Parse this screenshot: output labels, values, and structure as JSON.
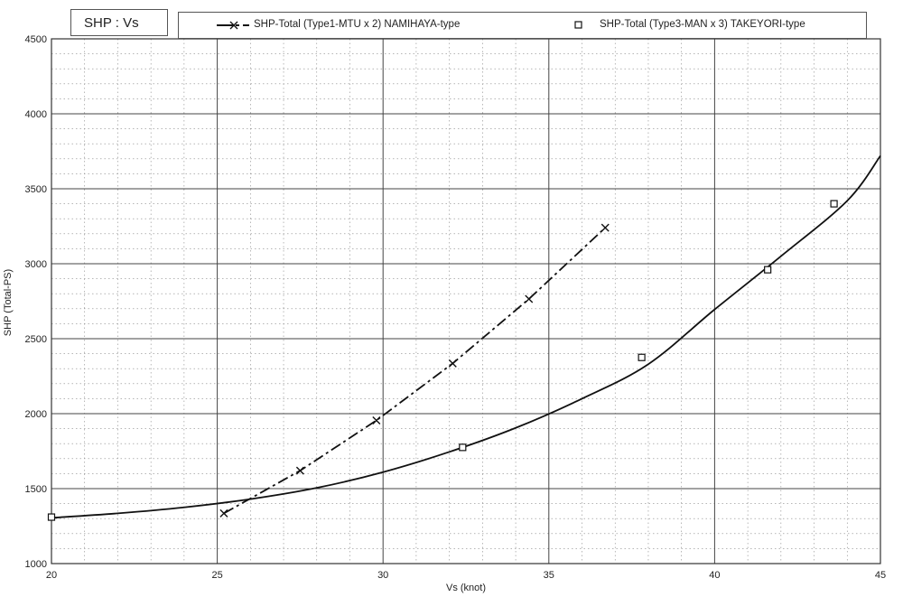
{
  "chart_data": {
    "type": "line",
    "title": "SHP : Vs",
    "xlabel": "Vs (knot)",
    "ylabel": "SHP (Total-PS)",
    "xlim": [
      20,
      45
    ],
    "ylim": [
      1000,
      4500
    ],
    "x_ticks": [
      20,
      25,
      30,
      35,
      40,
      45
    ],
    "y_ticks": [
      1000,
      1500,
      2000,
      2500,
      3000,
      3500,
      4000,
      4500
    ],
    "grid": true,
    "legend_position": "top",
    "series": [
      {
        "name": "SHP-Total (Type1-MTU x 2) NAMIHAYA-type",
        "style": "dash-dot line with x markers",
        "points": [
          [
            25.2,
            1335
          ],
          [
            27.5,
            1620
          ],
          [
            29.8,
            1955
          ],
          [
            32.1,
            2335
          ],
          [
            34.4,
            2765
          ],
          [
            36.7,
            3240
          ]
        ]
      },
      {
        "name": "SHP-Total (Type3-MAN x 3) TAKEYORI-type",
        "style": "square markers with smooth fitted solid curve",
        "points": [
          [
            20.0,
            1310
          ],
          [
            32.4,
            1775
          ],
          [
            37.8,
            2375
          ],
          [
            41.6,
            2960
          ],
          [
            43.6,
            3400
          ]
        ],
        "fit_curve": [
          [
            20,
            1305
          ],
          [
            22,
            1335
          ],
          [
            24,
            1375
          ],
          [
            26,
            1430
          ],
          [
            28,
            1505
          ],
          [
            30,
            1610
          ],
          [
            32,
            1745
          ],
          [
            34,
            1905
          ],
          [
            36,
            2100
          ],
          [
            38,
            2330
          ],
          [
            40,
            2695
          ],
          [
            42,
            3050
          ],
          [
            44,
            3420
          ],
          [
            45,
            3720
          ]
        ]
      }
    ]
  }
}
